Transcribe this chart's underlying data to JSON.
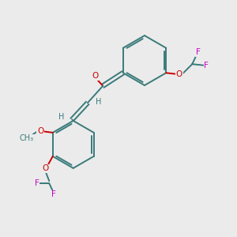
{
  "background_color": "#ebebeb",
  "bond_color": "#3a7a7a",
  "atom_colors": {
    "O": "#cc0000",
    "F": "#cc00cc",
    "H": "#3a7a7a"
  },
  "line_width": 1.4,
  "font_size": 7.5
}
